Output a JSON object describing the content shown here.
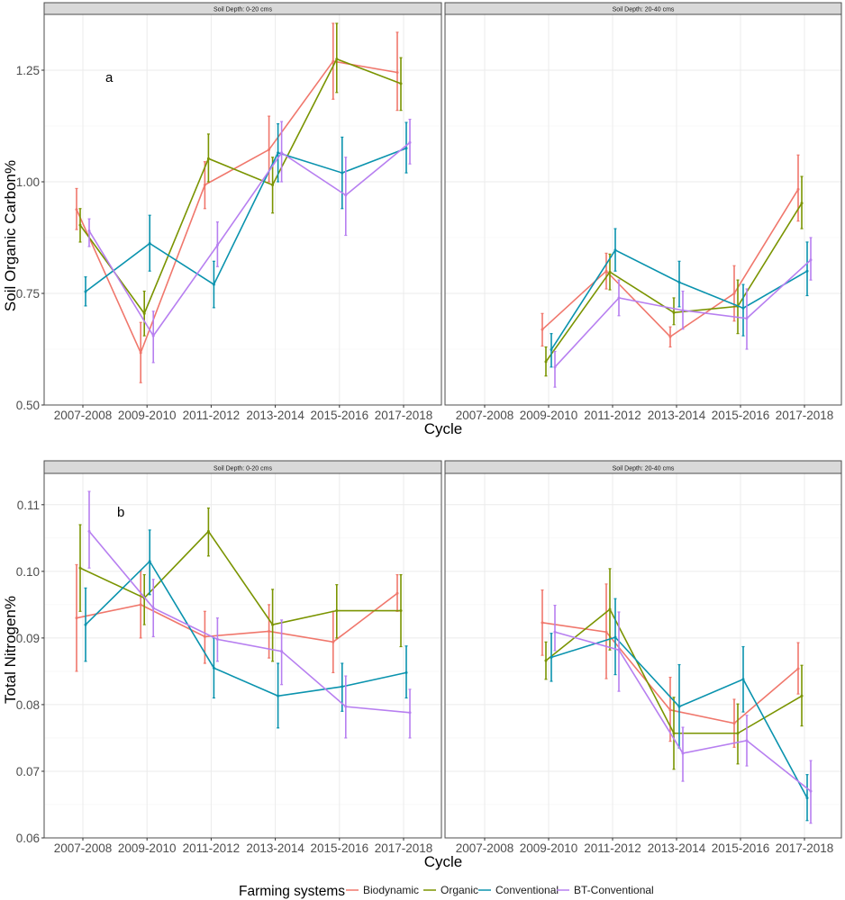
{
  "colors": {
    "Biodynamic": "#F0776C",
    "Organic": "#7A9400",
    "Conventional": "#0A93AE",
    "BT-Conventional": "#B77FF0",
    "strip_bg": "#d9d9d9",
    "grid": "#ebebeb",
    "border": "#4d4d4d"
  },
  "legend": {
    "title": "Farming systems",
    "entries": [
      "Biodynamic",
      "Organic",
      "Conventional",
      "BT-Conventional"
    ]
  },
  "chart_data": [
    {
      "type": "line",
      "panel_tag": "a",
      "strip_title": "Soil Depth: 0-20 cms",
      "xlabel": "Cycle",
      "ylabel": "Soil Organic Carbon%",
      "categories": [
        "2007-2008",
        "2009-2010",
        "2011-2012",
        "2013-2014",
        "2015-2016",
        "2017-2018"
      ],
      "ylim": [
        0.5,
        1.375
      ],
      "yticks": [
        "0.50",
        "0.75",
        "1.00",
        "1.25"
      ],
      "ytick_values": [
        0.5,
        0.75,
        1.0,
        1.25
      ],
      "grid": true,
      "series": [
        {
          "name": "Biodynamic",
          "values": [
            0.938,
            0.617,
            0.993,
            1.072,
            1.27,
            1.245
          ],
          "lower": [
            0.893,
            0.55,
            0.94,
            1.0,
            1.185,
            1.16
          ],
          "upper": [
            0.985,
            0.685,
            1.045,
            1.147,
            1.355,
            1.335
          ]
        },
        {
          "name": "Organic",
          "values": [
            0.903,
            0.705,
            1.052,
            0.993,
            1.275,
            1.22
          ],
          "lower": [
            0.865,
            0.655,
            1.0,
            0.93,
            1.2,
            1.16
          ],
          "upper": [
            0.94,
            0.755,
            1.107,
            1.055,
            1.355,
            1.278
          ]
        },
        {
          "name": "Conventional",
          "values": [
            0.754,
            0.862,
            0.77,
            1.065,
            1.02,
            1.075
          ],
          "lower": [
            0.722,
            0.8,
            0.718,
            1.0,
            0.94,
            1.02
          ],
          "upper": [
            0.787,
            0.925,
            0.822,
            1.13,
            1.1,
            1.133
          ]
        },
        {
          "name": "BT-Conventional",
          "values": [
            0.89,
            0.655,
            0.858,
            1.065,
            0.97,
            1.088
          ],
          "lower": [
            0.855,
            0.595,
            0.81,
            1.0,
            0.88,
            1.04
          ],
          "upper": [
            0.917,
            0.71,
            0.91,
            1.135,
            1.055,
            1.14
          ]
        }
      ]
    },
    {
      "type": "line",
      "panel_tag": "",
      "strip_title": "Soil Depth: 20-40 cms",
      "xlabel": "Cycle",
      "ylabel": "Soil Organic Carbon%",
      "categories": [
        "2007-2008",
        "2009-2010",
        "2011-2012",
        "2013-2014",
        "2015-2016",
        "2017-2018"
      ],
      "ylim": [
        0.5,
        1.375
      ],
      "grid": true,
      "series": [
        {
          "name": "Biodynamic",
          "values": [
            null,
            0.669,
            0.8,
            0.653,
            0.75,
            0.983
          ],
          "lower": [
            null,
            0.632,
            0.76,
            0.63,
            0.688,
            0.912
          ],
          "upper": [
            null,
            0.705,
            0.84,
            0.675,
            0.812,
            1.06
          ]
        },
        {
          "name": "Organic",
          "values": [
            null,
            0.597,
            0.798,
            0.707,
            0.721,
            0.952
          ],
          "lower": [
            null,
            0.565,
            0.758,
            0.68,
            0.66,
            0.895
          ],
          "upper": [
            null,
            0.63,
            0.838,
            0.74,
            0.78,
            1.012
          ]
        },
        {
          "name": "Conventional",
          "values": [
            null,
            0.624,
            0.847,
            0.775,
            0.717,
            0.8
          ],
          "lower": [
            null,
            0.585,
            0.8,
            0.72,
            0.655,
            0.745
          ],
          "upper": [
            null,
            0.66,
            0.895,
            0.822,
            0.77,
            0.865
          ]
        },
        {
          "name": "BT-Conventional",
          "values": [
            null,
            0.585,
            0.74,
            0.712,
            0.694,
            0.825
          ],
          "lower": [
            null,
            0.54,
            0.7,
            0.67,
            0.625,
            0.78
          ],
          "upper": [
            null,
            0.62,
            0.78,
            0.755,
            0.76,
            0.875
          ]
        }
      ]
    },
    {
      "type": "line",
      "panel_tag": "b",
      "strip_title": "Soil Depth: 0-20 cms",
      "xlabel": "Cycle",
      "ylabel": "Total Nitrogen%",
      "categories": [
        "2007-2008",
        "2009-2010",
        "2011-2012",
        "2013-2014",
        "2015-2016",
        "2017-2018"
      ],
      "ylim": [
        0.06,
        0.1147
      ],
      "yticks": [
        "0.06",
        "0.07",
        "0.08",
        "0.09",
        "0.10",
        "0.11"
      ],
      "ytick_values": [
        0.06,
        0.07,
        0.08,
        0.09,
        0.1,
        0.11
      ],
      "grid": true,
      "series": [
        {
          "name": "Biodynamic",
          "values": [
            0.093,
            0.095,
            0.0902,
            0.091,
            0.0894,
            0.0967
          ],
          "lower": [
            0.085,
            0.09,
            0.0862,
            0.087,
            0.0848,
            0.094
          ],
          "upper": [
            0.101,
            0.1,
            0.094,
            0.095,
            0.094,
            0.0995
          ]
        },
        {
          "name": "Organic",
          "values": [
            0.1005,
            0.096,
            0.106,
            0.092,
            0.0941,
            0.0941
          ],
          "lower": [
            0.094,
            0.092,
            0.1023,
            0.0865,
            0.09,
            0.0887
          ],
          "upper": [
            0.107,
            0.0995,
            0.1095,
            0.0973,
            0.098,
            0.0995
          ]
        },
        {
          "name": "Conventional",
          "values": [
            0.092,
            0.1015,
            0.0855,
            0.0813,
            0.0827,
            0.0848
          ],
          "lower": [
            0.0865,
            0.0965,
            0.081,
            0.0765,
            0.079,
            0.081
          ],
          "upper": [
            0.0975,
            0.1062,
            0.09,
            0.0862,
            0.0862,
            0.0888
          ]
        },
        {
          "name": "BT-Conventional",
          "values": [
            0.106,
            0.0945,
            0.0898,
            0.088,
            0.0797,
            0.0788
          ],
          "lower": [
            0.1005,
            0.0902,
            0.0865,
            0.083,
            0.075,
            0.075
          ],
          "upper": [
            0.112,
            0.0988,
            0.093,
            0.0927,
            0.0843,
            0.0823
          ]
        }
      ]
    },
    {
      "type": "line",
      "panel_tag": "",
      "strip_title": "Soil Depth: 20-40 cms",
      "xlabel": "Cycle",
      "ylabel": "Total Nitrogen%",
      "categories": [
        "2007-2008",
        "2009-2010",
        "2011-2012",
        "2013-2014",
        "2015-2016",
        "2017-2018"
      ],
      "ylim": [
        0.06,
        0.1147
      ],
      "grid": true,
      "series": [
        {
          "name": "Biodynamic",
          "values": [
            null,
            0.0923,
            0.0909,
            0.0792,
            0.0772,
            0.0854
          ],
          "lower": [
            null,
            0.0874,
            0.0839,
            0.0745,
            0.0736,
            0.0816
          ],
          "upper": [
            null,
            0.0972,
            0.0981,
            0.0841,
            0.0808,
            0.0893
          ]
        },
        {
          "name": "Organic",
          "values": [
            null,
            0.0866,
            0.0943,
            0.0757,
            0.0757,
            0.0813
          ],
          "lower": [
            null,
            0.0838,
            0.0882,
            0.0703,
            0.0711,
            0.0768
          ],
          "upper": [
            null,
            0.0894,
            0.1004,
            0.0811,
            0.0801,
            0.0859
          ]
        },
        {
          "name": "Conventional",
          "values": [
            null,
            0.0871,
            0.0901,
            0.0797,
            0.0838,
            0.066
          ],
          "lower": [
            null,
            0.0835,
            0.0845,
            0.0735,
            0.0789,
            0.0626
          ],
          "upper": [
            null,
            0.0907,
            0.0959,
            0.086,
            0.0887,
            0.0695
          ]
        },
        {
          "name": "BT-Conventional",
          "values": [
            null,
            0.0909,
            0.0882,
            0.0727,
            0.0746,
            0.067
          ],
          "lower": [
            null,
            0.0881,
            0.082,
            0.0685,
            0.0708,
            0.0622
          ],
          "upper": [
            null,
            0.0949,
            0.0939,
            0.0766,
            0.0784,
            0.0716
          ]
        }
      ]
    }
  ]
}
